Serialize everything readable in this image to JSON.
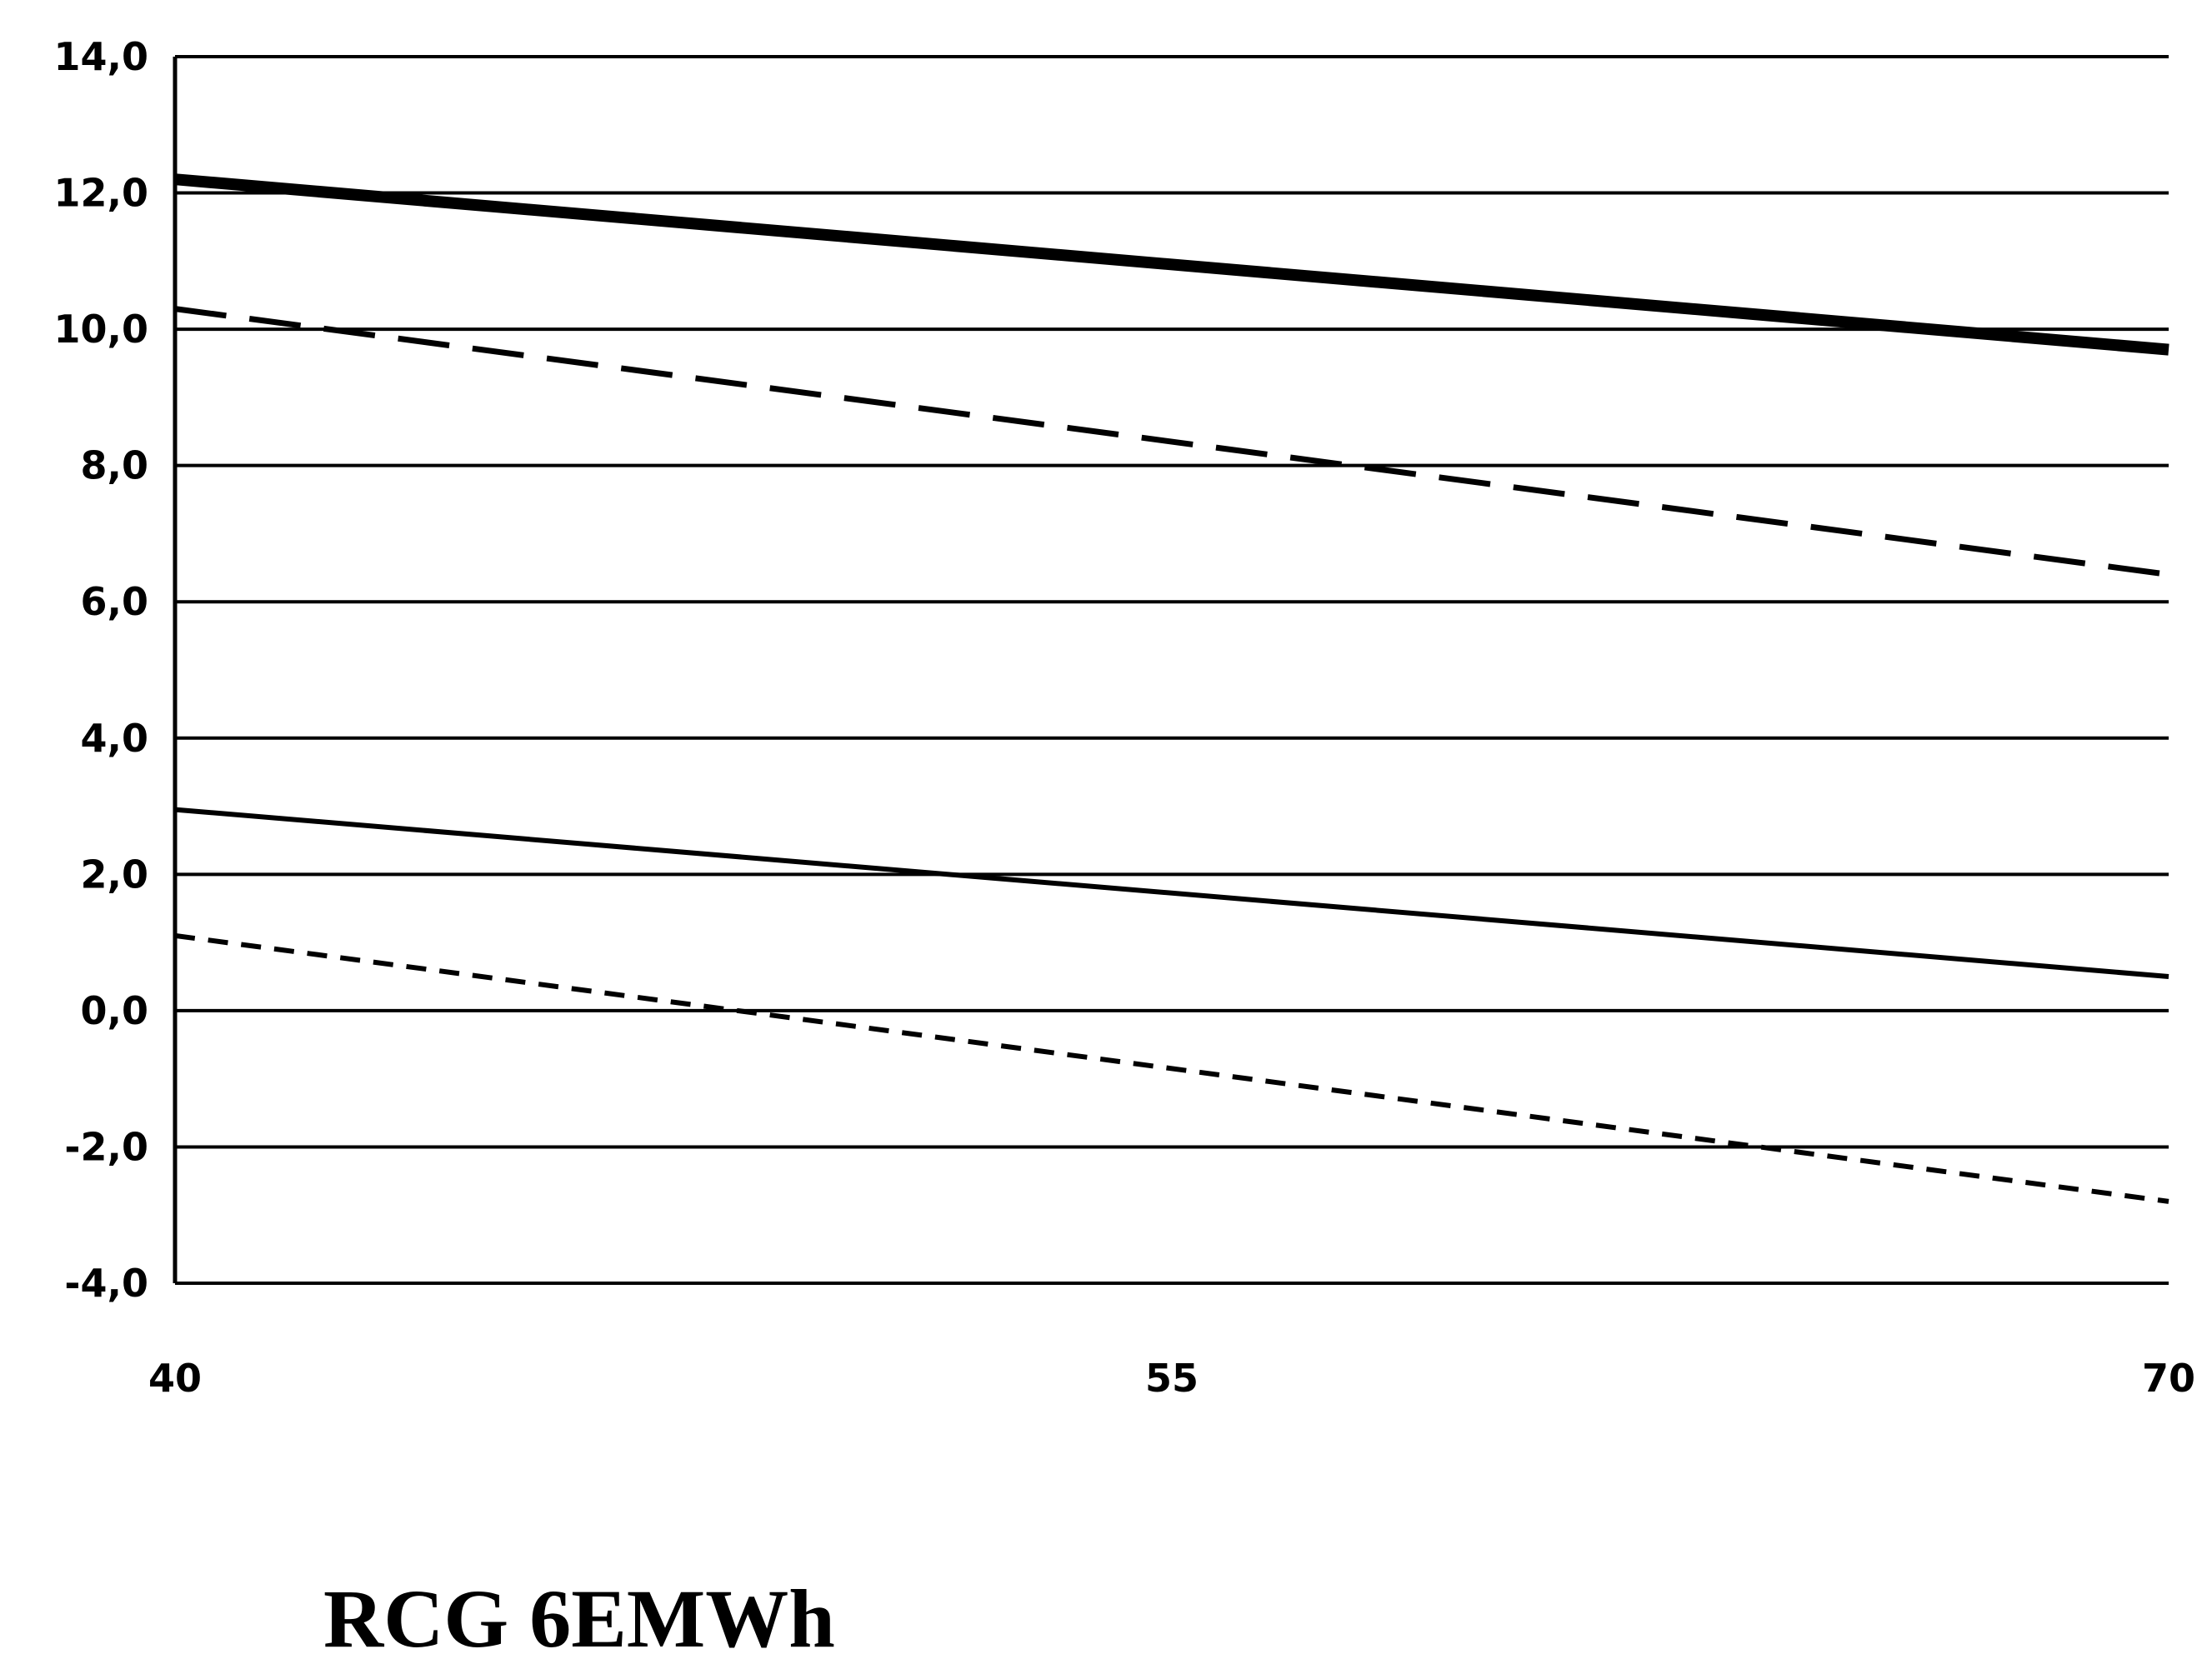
{
  "caption": "RCG 6EMWh",
  "colors": {
    "lines": "#000000",
    "grid": "#000000",
    "background": "#ffffff"
  },
  "chart_data": {
    "type": "line",
    "title": "",
    "xlabel": "",
    "ylabel": "",
    "x": [
      40,
      70
    ],
    "xticks": [
      40,
      55,
      70
    ],
    "xtick_labels": [
      "40",
      "55",
      "70"
    ],
    "xlim": [
      40,
      70
    ],
    "yticks": [
      -4,
      -2,
      0,
      2,
      4,
      6,
      8,
      10,
      12,
      14
    ],
    "ytick_labels": [
      "-4,0",
      "-2,0",
      "0,0",
      "2,0",
      "4,0",
      "6,0",
      "8,0",
      "10,0",
      "12,0",
      "14,0"
    ],
    "ylim": [
      -4,
      14
    ],
    "grid": true,
    "legend": "none",
    "series": [
      {
        "style": "thick-solid",
        "values": [
          12.2,
          9.7
        ]
      },
      {
        "style": "long-dash",
        "values": [
          10.3,
          6.4
        ]
      },
      {
        "style": "thin-solid",
        "values": [
          2.95,
          0.5
        ]
      },
      {
        "style": "short-dash",
        "values": [
          1.1,
          -2.8
        ]
      }
    ]
  }
}
